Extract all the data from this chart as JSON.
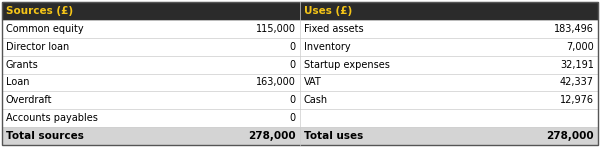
{
  "header_bg": "#2b2b2b",
  "header_text_color": "#f5c518",
  "row_bg": "#ffffff",
  "total_row_bg": "#d4d4d4",
  "outer_border_color": "#555555",
  "inner_border_color": "#cccccc",
  "sources_header": "Sources (£)",
  "uses_header": "Uses (£)",
  "sources": [
    {
      "label": "Common equity",
      "value": "115,000"
    },
    {
      "label": "Director loan",
      "value": "0"
    },
    {
      "label": "Grants",
      "value": "0"
    },
    {
      "label": "Loan",
      "value": "163,000"
    },
    {
      "label": "Overdraft",
      "value": "0"
    },
    {
      "label": "Accounts payables",
      "value": "0"
    }
  ],
  "uses": [
    {
      "label": "Fixed assets",
      "value": "183,496"
    },
    {
      "label": "Inventory",
      "value": "7,000"
    },
    {
      "label": "Startup expenses",
      "value": "32,191"
    },
    {
      "label": "VAT",
      "value": "42,337"
    },
    {
      "label": "Cash",
      "value": "12,976"
    },
    {
      "label": "",
      "value": ""
    }
  ],
  "total_sources_label": "Total sources",
  "total_sources_value": "278,000",
  "total_uses_label": "Total uses",
  "total_uses_value": "278,000",
  "figsize": [
    6.0,
    1.47
  ],
  "dpi": 100
}
